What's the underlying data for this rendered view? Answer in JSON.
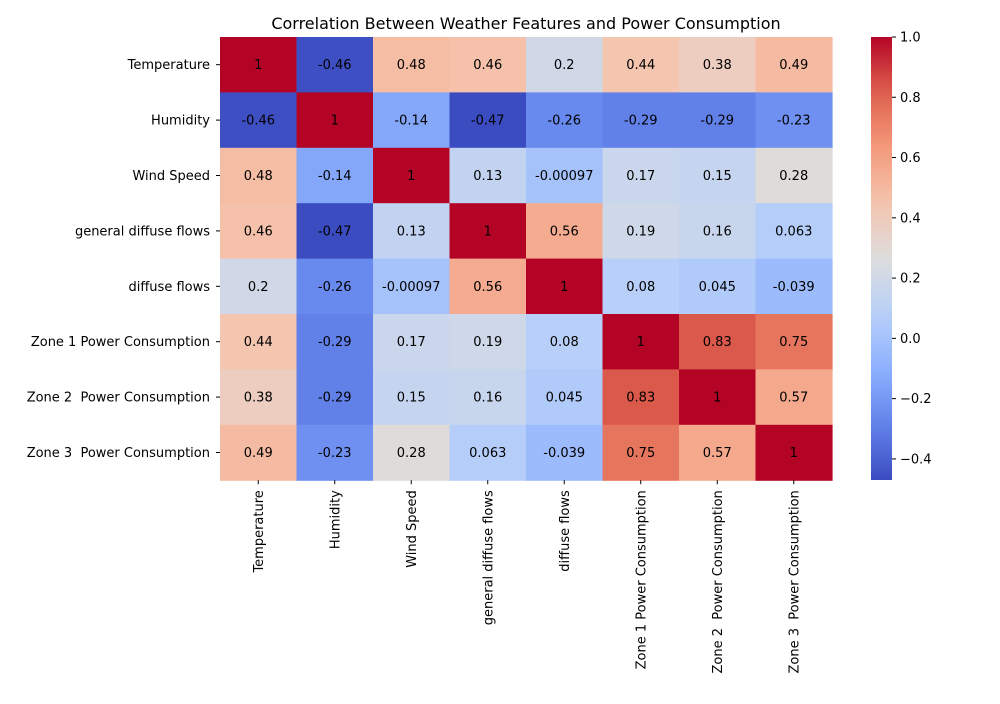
{
  "chart_data": {
    "type": "heatmap",
    "title": "Correlation Between Weather Features and Power Consumption",
    "row_labels": [
      "Temperature",
      "Humidity",
      "Wind Speed",
      "general diffuse flows",
      "diffuse flows",
      "Zone 1 Power Consumption",
      "Zone 2  Power Consumption",
      "Zone 3  Power Consumption"
    ],
    "col_labels": [
      "Temperature",
      "Humidity",
      "Wind Speed",
      "general diffuse flows",
      "diffuse flows",
      "Zone 1 Power Consumption",
      "Zone 2  Power Consumption",
      "Zone 3  Power Consumption"
    ],
    "values": [
      [
        1,
        -0.46,
        0.48,
        0.46,
        0.2,
        0.44,
        0.38,
        0.49
      ],
      [
        -0.46,
        1,
        -0.14,
        -0.47,
        -0.26,
        -0.29,
        -0.29,
        -0.23
      ],
      [
        0.48,
        -0.14,
        1,
        0.13,
        -0.00097,
        0.17,
        0.15,
        0.28
      ],
      [
        0.46,
        -0.47,
        0.13,
        1,
        0.56,
        0.19,
        0.16,
        0.063
      ],
      [
        0.2,
        -0.26,
        -0.00097,
        0.56,
        1,
        0.08,
        0.045,
        -0.039
      ],
      [
        0.44,
        -0.29,
        0.17,
        0.19,
        0.08,
        1,
        0.83,
        0.75
      ],
      [
        0.38,
        -0.29,
        0.15,
        0.16,
        0.045,
        0.83,
        1,
        0.57
      ],
      [
        0.49,
        -0.23,
        0.28,
        0.063,
        -0.039,
        0.75,
        0.57,
        1
      ]
    ],
    "annotations": [
      [
        "1",
        "-0.46",
        "0.48",
        "0.46",
        "0.2",
        "0.44",
        "0.38",
        "0.49"
      ],
      [
        "-0.46",
        "1",
        "-0.14",
        "-0.47",
        "-0.26",
        "-0.29",
        "-0.29",
        "-0.23"
      ],
      [
        "0.48",
        "-0.14",
        "1",
        "0.13",
        "-0.00097",
        "0.17",
        "0.15",
        "0.28"
      ],
      [
        "0.46",
        "-0.47",
        "0.13",
        "1",
        "0.56",
        "0.19",
        "0.16",
        "0.063"
      ],
      [
        "0.2",
        "-0.26",
        "-0.00097",
        "0.56",
        "1",
        "0.08",
        "0.045",
        "-0.039"
      ],
      [
        "0.44",
        "-0.29",
        "0.17",
        "0.19",
        "0.08",
        "1",
        "0.83",
        "0.75"
      ],
      [
        "0.38",
        "-0.29",
        "0.15",
        "0.16",
        "0.045",
        "0.83",
        "1",
        "0.57"
      ],
      [
        "0.49",
        "-0.23",
        "0.28",
        "0.063",
        "-0.039",
        "0.75",
        "0.57",
        "1"
      ]
    ],
    "colormap": "coolwarm",
    "vmin": -0.47,
    "vmax": 1.0,
    "colorbar_ticks": [
      1.0,
      0.8,
      0.6,
      0.4,
      0.2,
      0.0,
      -0.2,
      -0.4
    ],
    "colorbar_tick_labels": [
      "1.0",
      "0.8",
      "0.6",
      "0.4",
      "0.2",
      "0.0",
      "−0.2",
      "−0.4"
    ],
    "colorbar_position": "right",
    "grid": false
  }
}
